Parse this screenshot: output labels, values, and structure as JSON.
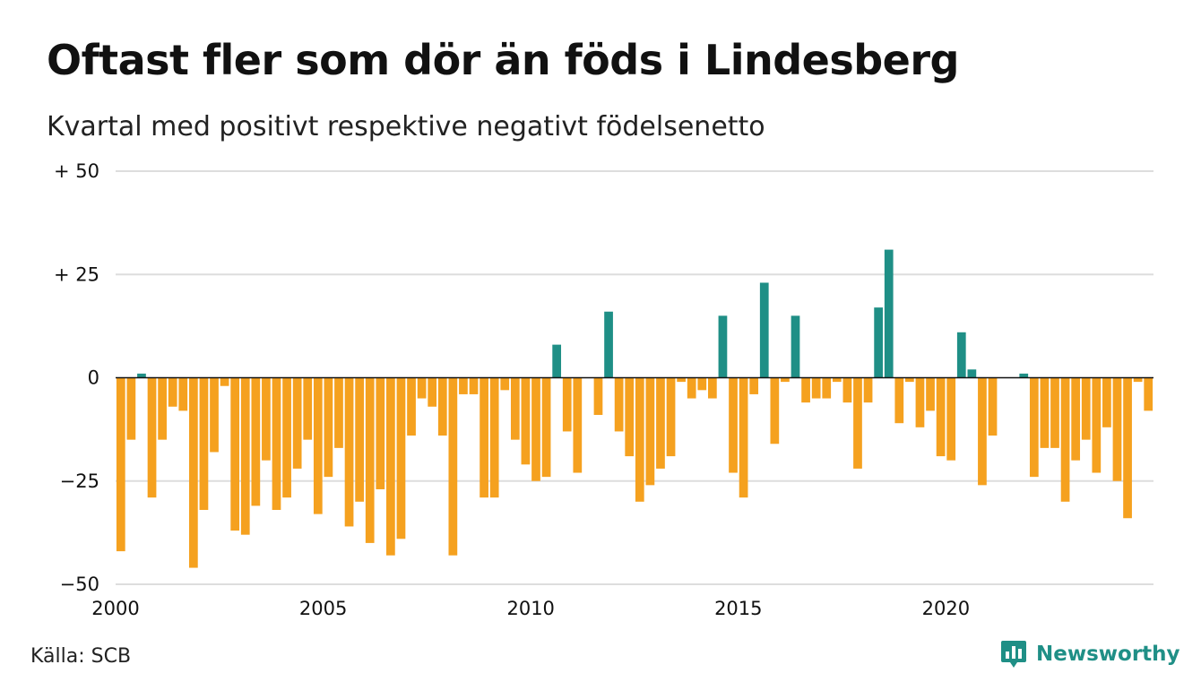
{
  "header": {
    "title": "Oftast fler som dör än föds i Lindesberg",
    "subtitle": "Kvartal med positivt respektive negativt födelsenetto"
  },
  "footer": {
    "source": "Källa: SCB",
    "brand": "Newsworthy",
    "brand_icon": "bar-chart-speech-bubble-icon"
  },
  "colors": {
    "positive": "#1f8f86",
    "negative": "#f5a11f",
    "grid": "#dddddd",
    "zero_line": "#111111"
  },
  "chart_data": {
    "type": "bar",
    "title": "Oftast fler som dör än föds i Lindesberg",
    "subtitle": "Kvartal med positivt respektive negativt födelsenetto",
    "ylim": [
      -50,
      50
    ],
    "y_ticks": [
      {
        "value": 50,
        "label": "+ 50"
      },
      {
        "value": 25,
        "label": "+ 25"
      },
      {
        "value": 0,
        "label": "0"
      },
      {
        "value": -25,
        "label": "−25"
      },
      {
        "value": -50,
        "label": "−50"
      }
    ],
    "x_ticks": [
      {
        "value": 2000,
        "label": "2000"
      },
      {
        "value": 2005,
        "label": "2005"
      },
      {
        "value": 2010,
        "label": "2010"
      },
      {
        "value": 2015,
        "label": "2015"
      },
      {
        "value": 2020,
        "label": "2020"
      }
    ],
    "grid": true,
    "start_year": 2000,
    "periods_per_year": 4,
    "values": [
      -42,
      -15,
      1,
      -29,
      -15,
      -7,
      -8,
      -46,
      -32,
      -18,
      -2,
      -37,
      -38,
      -31,
      -20,
      -32,
      -29,
      -22,
      -15,
      -33,
      -24,
      -17,
      -36,
      -30,
      -40,
      -27,
      -43,
      -39,
      -14,
      -5,
      -7,
      -14,
      -43,
      -4,
      -4,
      -29,
      -29,
      -3,
      -15,
      -21,
      -25,
      -24,
      8,
      -13,
      -23,
      0,
      -9,
      16,
      -13,
      -19,
      -30,
      -26,
      -22,
      -19,
      -1,
      -5,
      -3,
      -5,
      15,
      -23,
      -29,
      -4,
      23,
      -16,
      -1,
      15,
      -6,
      -5,
      -5,
      -1,
      -6,
      -22,
      -6,
      17,
      31,
      -11,
      -1,
      -12,
      -8,
      -19,
      -20,
      11,
      2,
      -26,
      -14,
      0,
      0,
      1,
      -24,
      -17,
      -17,
      -30,
      -20,
      -15,
      -23,
      -12,
      -25,
      -34,
      -1,
      -8
    ]
  }
}
